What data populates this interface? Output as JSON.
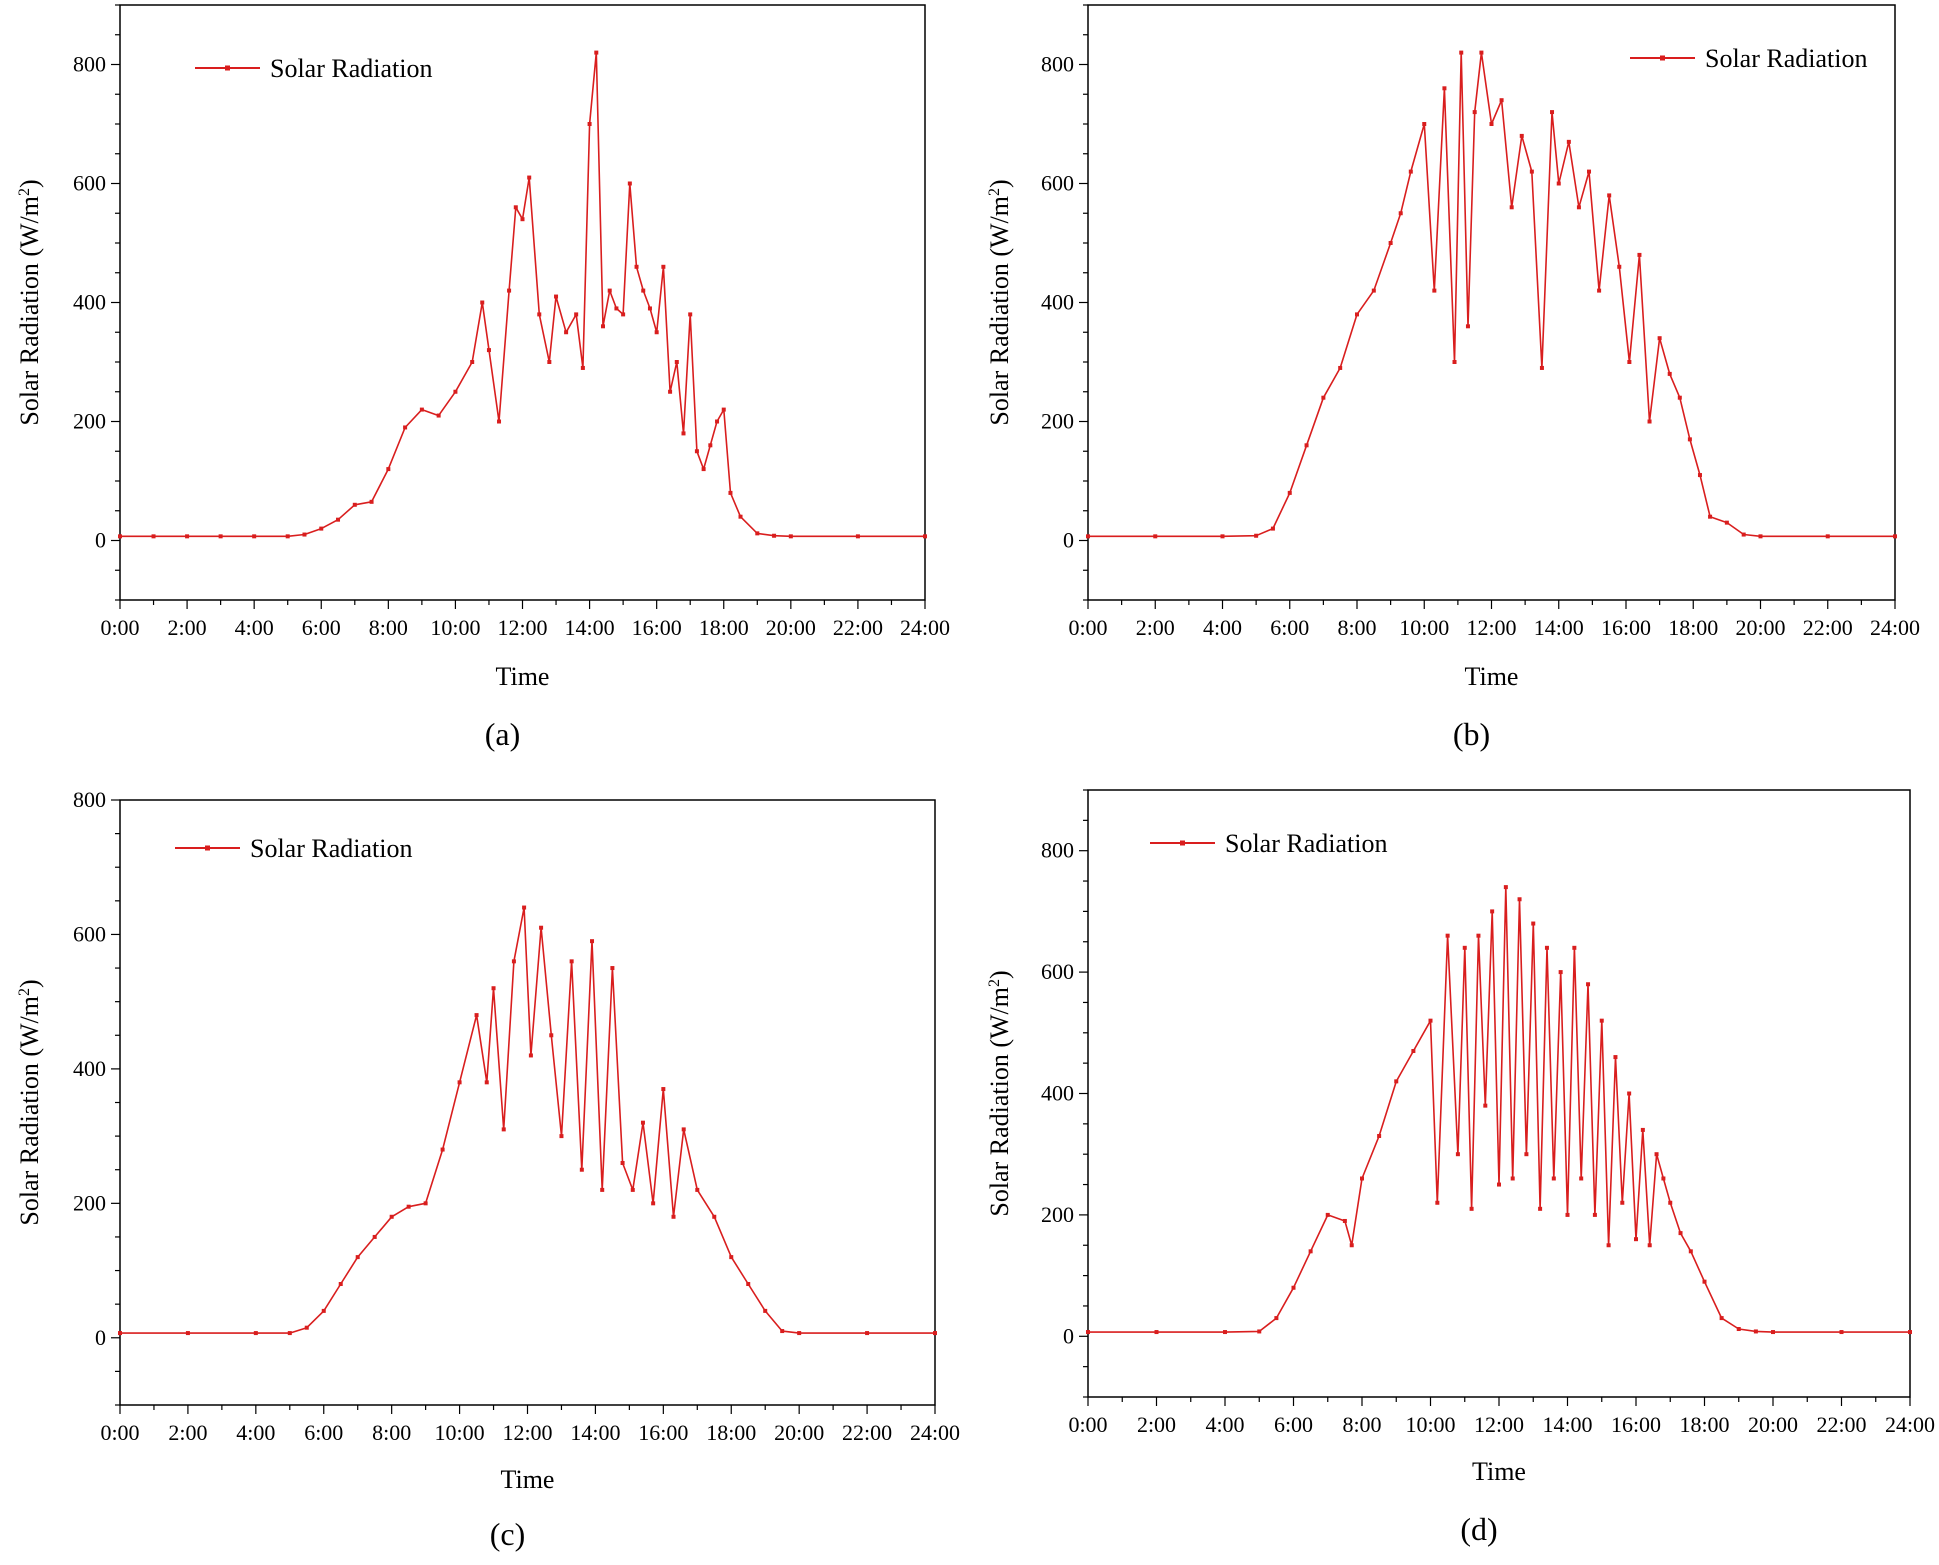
{
  "colors": {
    "series": "#d91e1e",
    "axis": "#000000"
  },
  "chart_data": [
    {
      "id": "a",
      "caption": "(a)",
      "type": "line",
      "xlabel": "Time",
      "ylabel_main": "Solar Radiation (W/m",
      "ylabel_sup": "2",
      "ylabel_end": ")",
      "legend": "Solar Radiation",
      "legend_position": "top-left",
      "x_ticks": [
        "0:00",
        "2:00",
        "4:00",
        "6:00",
        "8:00",
        "10:00",
        "12:00",
        "14:00",
        "16:00",
        "18:00",
        "20:00",
        "22:00",
        "24:00"
      ],
      "y_ticks": [
        "0",
        "200",
        "400",
        "600",
        "800"
      ],
      "xlim": [
        0,
        24
      ],
      "ylim": [
        -100,
        900
      ],
      "x": [
        0,
        1,
        2,
        3,
        4,
        5,
        5.5,
        6,
        6.5,
        7,
        7.5,
        8,
        8.5,
        9,
        9.5,
        10,
        10.5,
        10.8,
        11,
        11.3,
        11.6,
        11.8,
        12,
        12.2,
        12.5,
        12.8,
        13,
        13.3,
        13.6,
        13.8,
        14,
        14.2,
        14.4,
        14.6,
        14.8,
        15,
        15.2,
        15.4,
        15.6,
        15.8,
        16,
        16.2,
        16.4,
        16.6,
        16.8,
        17,
        17.2,
        17.4,
        17.6,
        17.8,
        18,
        18.2,
        18.5,
        19,
        19.5,
        20,
        22,
        24
      ],
      "values": [
        7,
        7,
        7,
        7,
        7,
        7,
        10,
        20,
        35,
        60,
        65,
        120,
        190,
        220,
        210,
        250,
        300,
        400,
        320,
        200,
        420,
        560,
        540,
        610,
        380,
        300,
        410,
        350,
        380,
        290,
        700,
        820,
        360,
        420,
        390,
        380,
        600,
        460,
        420,
        390,
        350,
        460,
        250,
        300,
        180,
        380,
        150,
        120,
        160,
        200,
        220,
        80,
        40,
        12,
        8,
        7,
        7,
        7
      ]
    },
    {
      "id": "b",
      "caption": "(b)",
      "type": "line",
      "xlabel": "Time",
      "ylabel_main": "Solar Radiation (W/m",
      "ylabel_sup": "2",
      "ylabel_end": ")",
      "legend": "Solar Radiation",
      "legend_position": "top-right",
      "x_ticks": [
        "0:00",
        "2:00",
        "4:00",
        "6:00",
        "8:00",
        "10:00",
        "12:00",
        "14:00",
        "16:00",
        "18:00",
        "20:00",
        "22:00",
        "24:00"
      ],
      "y_ticks": [
        "0",
        "200",
        "400",
        "600",
        "800"
      ],
      "xlim": [
        0,
        24
      ],
      "ylim": [
        -100,
        900
      ],
      "x": [
        0,
        2,
        4,
        5,
        5.5,
        6,
        6.5,
        7,
        7.5,
        8,
        8.5,
        9,
        9.3,
        9.6,
        10,
        10.3,
        10.6,
        10.9,
        11.1,
        11.3,
        11.5,
        11.7,
        12,
        12.3,
        12.6,
        12.9,
        13.2,
        13.5,
        13.8,
        14,
        14.3,
        14.6,
        14.9,
        15.2,
        15.5,
        15.8,
        16.1,
        16.4,
        16.7,
        17,
        17.3,
        17.6,
        17.9,
        18.2,
        18.5,
        19,
        19.5,
        20,
        22,
        24
      ],
      "values": [
        7,
        7,
        7,
        8,
        20,
        80,
        160,
        240,
        290,
        380,
        420,
        500,
        550,
        620,
        700,
        420,
        760,
        300,
        820,
        360,
        720,
        820,
        700,
        740,
        560,
        680,
        620,
        290,
        720,
        600,
        670,
        560,
        620,
        420,
        580,
        460,
        300,
        480,
        200,
        340,
        280,
        240,
        170,
        110,
        40,
        30,
        10,
        7,
        7,
        7
      ]
    },
    {
      "id": "c",
      "caption": "(c)",
      "type": "line",
      "xlabel": "Time",
      "ylabel_main": "Solar Radiation (W/m",
      "ylabel_sup": "2",
      "ylabel_end": ")",
      "legend": "Solar Radiation",
      "legend_position": "top-left",
      "x_ticks": [
        "0:00",
        "2:00",
        "4:00",
        "6:00",
        "8:00",
        "10:00",
        "12:00",
        "14:00",
        "16:00",
        "18:00",
        "20:00",
        "22:00",
        "24:00"
      ],
      "y_ticks": [
        "0",
        "200",
        "400",
        "600",
        "800"
      ],
      "xlim": [
        0,
        24
      ],
      "ylim": [
        -100,
        800
      ],
      "x": [
        0,
        2,
        4,
        5,
        5.5,
        6,
        6.5,
        7,
        7.5,
        8,
        8.5,
        9,
        9.5,
        10,
        10.5,
        10.8,
        11,
        11.3,
        11.6,
        11.9,
        12.1,
        12.4,
        12.7,
        13,
        13.3,
        13.6,
        13.9,
        14.2,
        14.5,
        14.8,
        15.1,
        15.4,
        15.7,
        16,
        16.3,
        16.6,
        17,
        17.5,
        18,
        18.5,
        19,
        19.5,
        20,
        22,
        24
      ],
      "values": [
        7,
        7,
        7,
        7,
        15,
        40,
        80,
        120,
        150,
        180,
        195,
        200,
        280,
        380,
        480,
        380,
        520,
        310,
        560,
        640,
        420,
        610,
        450,
        300,
        560,
        250,
        590,
        220,
        550,
        260,
        220,
        320,
        200,
        370,
        180,
        310,
        220,
        180,
        120,
        80,
        40,
        10,
        7,
        7,
        7
      ]
    },
    {
      "id": "d",
      "caption": "(d)",
      "type": "line",
      "xlabel": "Time",
      "ylabel_main": "Solar Radiation (W/m",
      "ylabel_sup": "2",
      "ylabel_end": ")",
      "legend": "Solar Radiation",
      "legend_position": "top-left",
      "x_ticks": [
        "0:00",
        "2:00",
        "4:00",
        "6:00",
        "8:00",
        "10:00",
        "12:00",
        "14:00",
        "16:00",
        "18:00",
        "20:00",
        "22:00",
        "24:00"
      ],
      "y_ticks": [
        "0",
        "200",
        "400",
        "600",
        "800"
      ],
      "xlim": [
        0,
        24
      ],
      "ylim": [
        -100,
        900
      ],
      "x": [
        0,
        2,
        4,
        5,
        5.5,
        6,
        6.5,
        7,
        7.5,
        7.7,
        8,
        8.5,
        9,
        9.5,
        10,
        10.2,
        10.5,
        10.8,
        11,
        11.2,
        11.4,
        11.6,
        11.8,
        12,
        12.2,
        12.4,
        12.6,
        12.8,
        13,
        13.2,
        13.4,
        13.6,
        13.8,
        14,
        14.2,
        14.4,
        14.6,
        14.8,
        15,
        15.2,
        15.4,
        15.6,
        15.8,
        16,
        16.2,
        16.4,
        16.6,
        16.8,
        17,
        17.3,
        17.6,
        18,
        18.5,
        19,
        19.5,
        20,
        22,
        24
      ],
      "values": [
        7,
        7,
        7,
        8,
        30,
        80,
        140,
        200,
        190,
        150,
        260,
        330,
        420,
        470,
        520,
        220,
        660,
        300,
        640,
        210,
        660,
        380,
        700,
        250,
        740,
        260,
        720,
        300,
        680,
        210,
        640,
        260,
        600,
        200,
        640,
        260,
        580,
        200,
        520,
        150,
        460,
        220,
        400,
        160,
        340,
        150,
        300,
        260,
        220,
        170,
        140,
        90,
        30,
        12,
        8,
        7,
        7,
        7
      ]
    }
  ]
}
